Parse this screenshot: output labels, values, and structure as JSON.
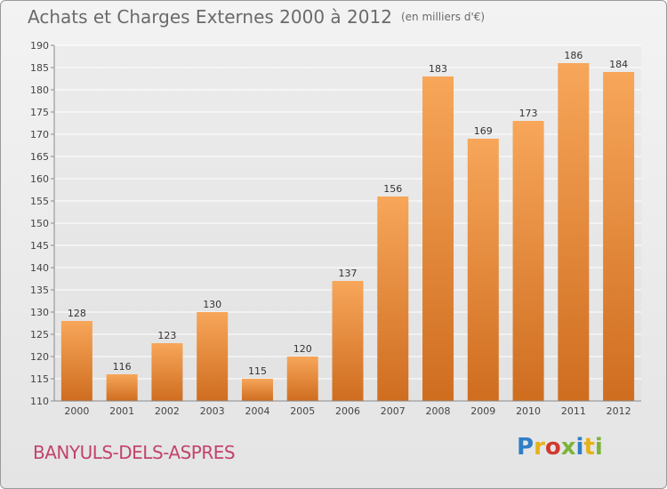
{
  "title": "Achats et Charges Externes 2000 à 2012",
  "subtitle": "(en milliers d'€)",
  "city": "BANYULS-DELS-ASPRES",
  "logo": {
    "letters": [
      "P",
      "r",
      "o",
      "x",
      "i",
      "t",
      "i"
    ],
    "colors": [
      "#2f7ec7",
      "#e4b21a",
      "#d03a2f",
      "#7cb33a",
      "#2f7ec7",
      "#e4b21a",
      "#7cb33a"
    ]
  },
  "colors": {
    "bar_light": "#f7a65a",
    "bar_dark": "#cf6d1f",
    "title": "#6a6a6a",
    "city": "#c1446b"
  },
  "chart_data": {
    "type": "bar",
    "categories": [
      "2000",
      "2001",
      "2002",
      "2003",
      "2004",
      "2005",
      "2006",
      "2007",
      "2008",
      "2009",
      "2010",
      "2011",
      "2012"
    ],
    "values": [
      128,
      116,
      123,
      130,
      115,
      120,
      137,
      156,
      183,
      169,
      173,
      186,
      184
    ],
    "title": "Achats et Charges Externes 2000 à 2012",
    "xlabel": "",
    "ylabel": "",
    "ylim": [
      110,
      190
    ],
    "yticks": [
      110,
      115,
      120,
      125,
      130,
      135,
      140,
      145,
      150,
      155,
      160,
      165,
      170,
      175,
      180,
      185,
      190
    ],
    "grid": true,
    "data_labels": true
  }
}
